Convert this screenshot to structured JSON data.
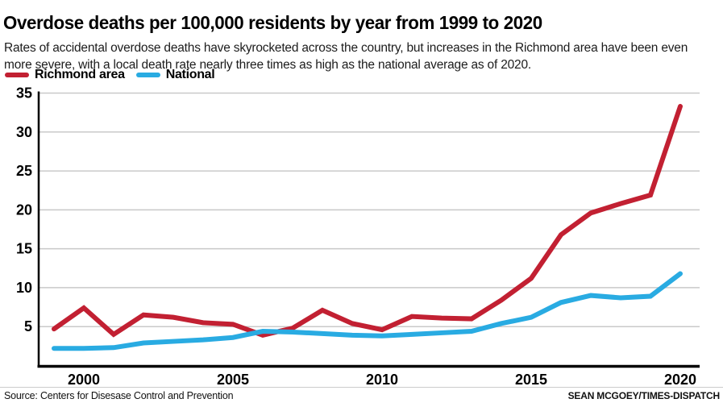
{
  "header": {
    "title": "Overdose deaths per 100,000 residents by year from 1999 to 2020",
    "subtitle_line1": "Rates of accidental overdose deaths have skyrocketed across the country, but increases in the Richmond area have been even",
    "subtitle_line2": "more severe, with a local death rate nearly three times as high as the national average as of 2020."
  },
  "legend": {
    "items": [
      {
        "label": "Richmond area",
        "color": "#c22032"
      },
      {
        "label": "National",
        "color": "#29abe2"
      }
    ]
  },
  "chart_data": {
    "type": "line",
    "title": "Overdose deaths per 100,000 residents by year from 1999 to 2020",
    "x": [
      1999,
      2000,
      2001,
      2002,
      2003,
      2004,
      2005,
      2006,
      2007,
      2008,
      2009,
      2010,
      2011,
      2012,
      2013,
      2014,
      2015,
      2016,
      2017,
      2018,
      2019,
      2020
    ],
    "series": [
      {
        "name": "Richmond area",
        "color": "#c22032",
        "values": [
          4.7,
          7.4,
          4.0,
          6.5,
          6.2,
          5.5,
          5.3,
          3.9,
          4.8,
          7.1,
          5.4,
          4.6,
          6.3,
          6.1,
          6.0,
          8.4,
          11.2,
          16.8,
          19.6,
          20.8,
          21.9,
          33.3
        ]
      },
      {
        "name": "National",
        "color": "#29abe2",
        "values": [
          2.2,
          2.2,
          2.3,
          2.9,
          3.1,
          3.3,
          3.6,
          4.4,
          4.3,
          4.1,
          3.9,
          3.8,
          4.0,
          4.2,
          4.4,
          5.4,
          6.2,
          8.1,
          9.0,
          8.7,
          8.9,
          11.8
        ]
      }
    ],
    "ylim": [
      0,
      35
    ],
    "yticks": [
      5,
      10,
      15,
      20,
      25,
      30,
      35
    ],
    "xticks": [
      2000,
      2005,
      2010,
      2015,
      2020
    ],
    "grid": true,
    "legend_position": "top-left",
    "grid_color": "#c9c9c9",
    "axis_color": "#000000"
  },
  "footer": {
    "source": "Source: Centers for Disesase Control and Prevention",
    "credit": "SEAN MCGOEY/TIMES-DISPATCH"
  }
}
